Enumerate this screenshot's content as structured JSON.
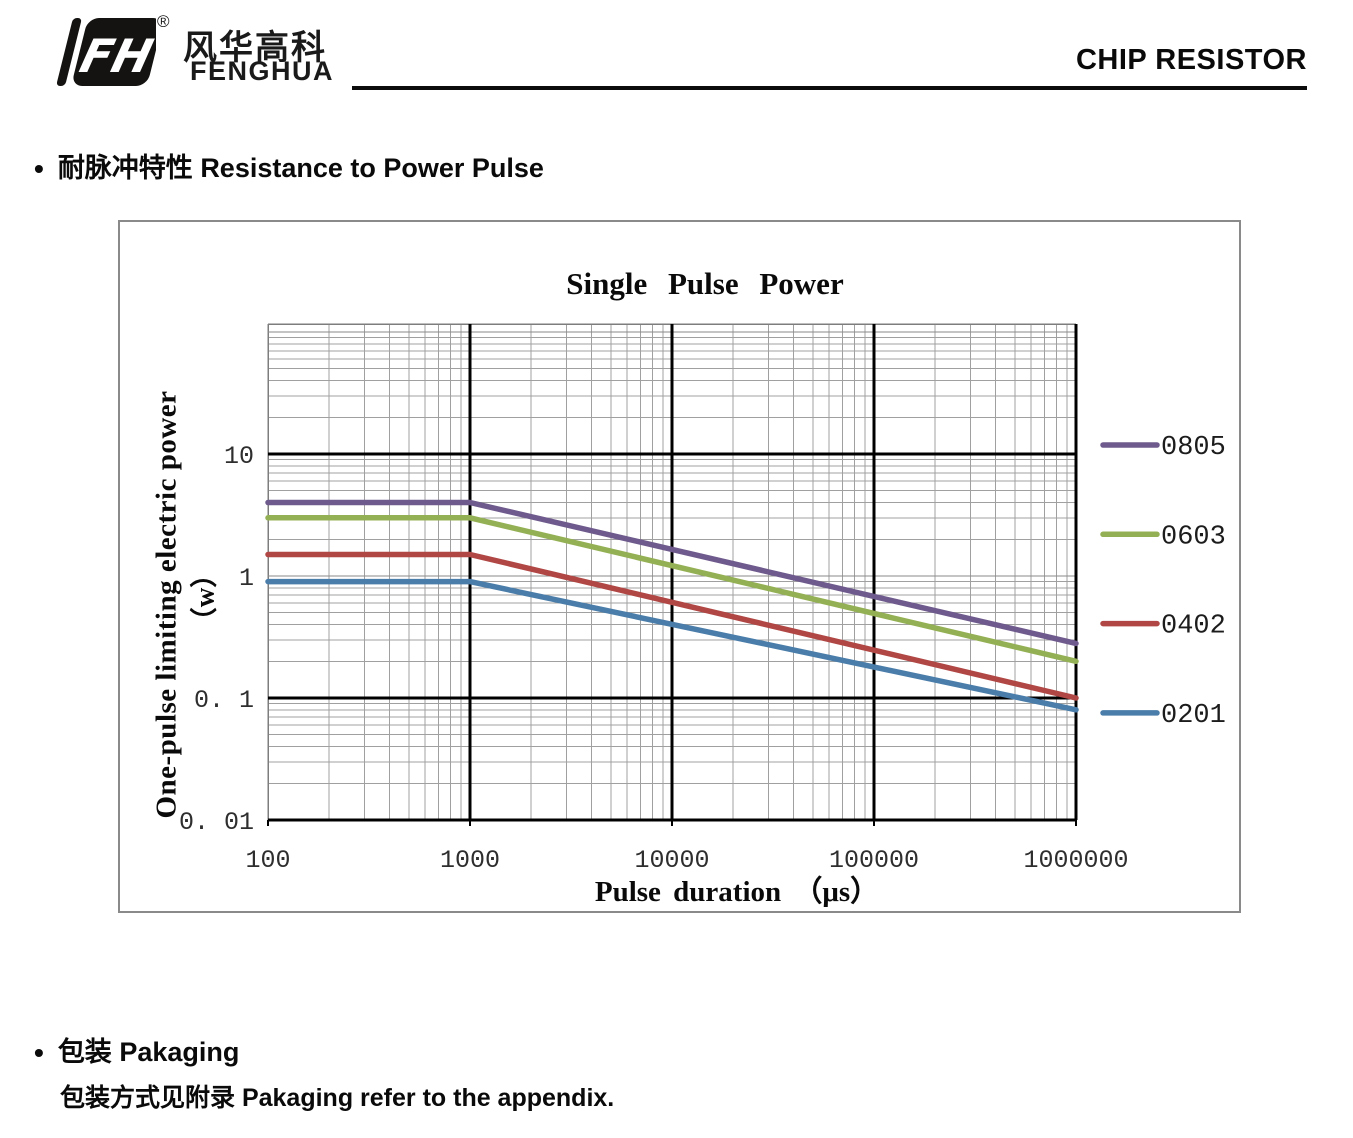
{
  "header": {
    "logo_mark": "FH",
    "registered_mark": "®",
    "brand_cn": "风华高科",
    "brand_en": "FENGHUA",
    "doc_title": "CHIP RESISTOR"
  },
  "section_pulse": {
    "bullet": "•",
    "title": "耐脉冲特性 Resistance to Power Pulse"
  },
  "section_packaging": {
    "bullet": "•",
    "title": "包装 Pakaging",
    "body": "包装方式见附录 Pakaging refer to the appendix."
  },
  "chart_data": {
    "type": "line",
    "title": "Single Pulse Power",
    "xlabel": "Pulse duration （μs）",
    "ylabel": "One-pulse limiting electric power",
    "ylabel_unit": "（w）",
    "x_scale": "log",
    "y_scale": "log",
    "xlim": [
      100,
      1000000
    ],
    "ylim": [
      0.01,
      100
    ],
    "grid": {
      "minor": true,
      "major_black_x": [
        1000,
        10000,
        100000,
        1000000
      ],
      "major_black_y": [
        10,
        0.1
      ],
      "gray_decades_x": [
        100
      ],
      "gray_decades_y": [
        100,
        1
      ]
    },
    "x_ticks": [
      {
        "label": "100",
        "value": 100
      },
      {
        "label": "1000",
        "value": 1000
      },
      {
        "label": "10000",
        "value": 10000
      },
      {
        "label": "100000",
        "value": 100000
      },
      {
        "label": "1000000",
        "value": 1000000
      }
    ],
    "y_ticks": [
      {
        "label": "10",
        "value": 10
      },
      {
        "label": "1",
        "value": 1
      },
      {
        "label": "0. 1",
        "value": 0.1
      },
      {
        "label": "0. 01",
        "value": 0.01
      }
    ],
    "legend_position": "right",
    "series": [
      {
        "name": "0805",
        "color": "#6E5A8C",
        "points": [
          [
            100,
            4
          ],
          [
            1000,
            4
          ],
          [
            1000000,
            0.28
          ]
        ]
      },
      {
        "name": "0603",
        "color": "#94B054",
        "points": [
          [
            100,
            3
          ],
          [
            1000,
            3
          ],
          [
            1000000,
            0.2
          ]
        ]
      },
      {
        "name": "0402",
        "color": "#B04744",
        "points": [
          [
            100,
            1.5
          ],
          [
            1000,
            1.5
          ],
          [
            1000000,
            0.1
          ]
        ]
      },
      {
        "name": "0201",
        "color": "#4A7DA9",
        "points": [
          [
            100,
            0.9
          ],
          [
            1000,
            0.9
          ],
          [
            1000000,
            0.08
          ]
        ]
      }
    ]
  }
}
